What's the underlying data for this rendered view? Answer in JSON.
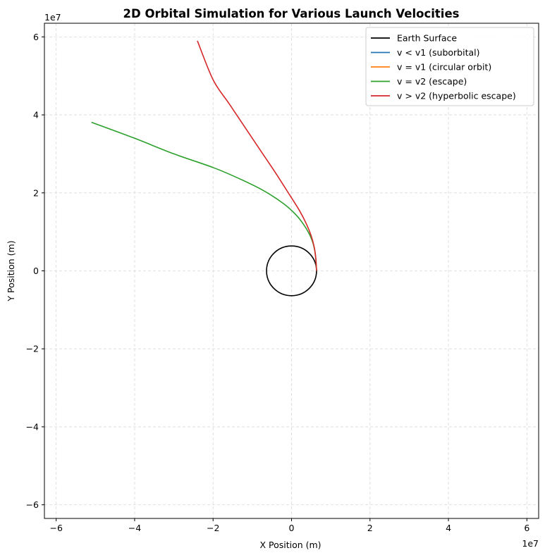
{
  "chart_data": {
    "type": "line",
    "title": "2D Orbital Simulation for Various Launch Velocities",
    "xlabel": "X Position (m)",
    "ylabel": "Y Position (m)",
    "x_offset_label": "1e7",
    "y_offset_label": "1e7",
    "xlim": [
      -6.3,
      6.3
    ],
    "ylim": [
      -6.35,
      6.35
    ],
    "x_ticks": [
      -6,
      -4,
      -2,
      0,
      2,
      4,
      6
    ],
    "y_ticks": [
      -6,
      -4,
      -2,
      0,
      2,
      4,
      6
    ],
    "x_tick_labels": [
      "−6",
      "−4",
      "−2",
      "0",
      "2",
      "4",
      "6"
    ],
    "y_tick_labels": [
      "−6",
      "−4",
      "−2",
      "0",
      "2",
      "4",
      "6"
    ],
    "grid": true,
    "legend_position": "top-right",
    "earth": {
      "name": "Earth Surface",
      "radius": 0.6371,
      "color": "#000000"
    },
    "series": [
      {
        "name": "v < v1 (suborbital)",
        "color": "#1f77b4",
        "x": [],
        "y": []
      },
      {
        "name": "v = v1 (circular orbit)",
        "color": "#ff7f0e",
        "x": [],
        "y": []
      },
      {
        "name": "v = v2 (escape)",
        "color": "#2ca02c",
        "x": [
          0.637,
          0.61,
          0.55,
          0.45,
          0.3,
          0.1,
          -0.2,
          -0.7,
          -1.3,
          -2.0,
          -3.0,
          -4.0,
          -5.1
        ],
        "y": [
          0.0,
          0.4,
          0.7,
          0.95,
          1.2,
          1.45,
          1.72,
          2.05,
          2.35,
          2.65,
          3.0,
          3.4,
          3.81
        ]
      },
      {
        "name": "v > v2 (hyperbolic escape)",
        "color": "#d62728",
        "x": [
          0.637,
          0.62,
          0.58,
          0.5,
          0.38,
          0.2,
          -0.05,
          -0.4,
          -0.8,
          -1.2,
          -1.6,
          -2.0,
          -2.4
        ],
        "y": [
          0.0,
          0.3,
          0.6,
          0.9,
          1.2,
          1.55,
          1.95,
          2.5,
          3.1,
          3.7,
          4.3,
          4.9,
          5.9
        ]
      }
    ]
  }
}
